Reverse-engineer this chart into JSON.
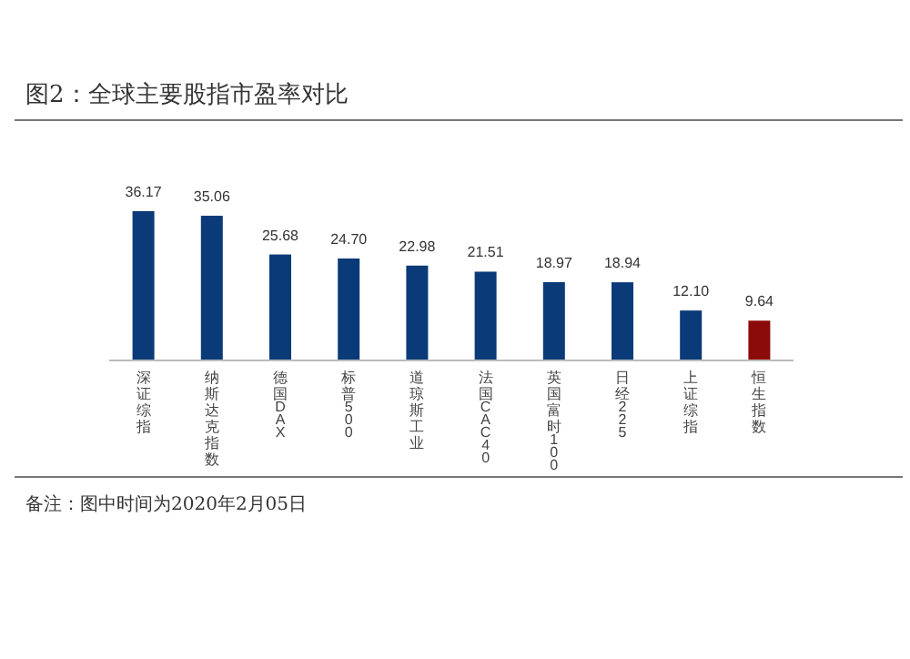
{
  "chart_data": {
    "type": "bar",
    "title": "图2：全球主要股指市盈率对比",
    "categories": [
      "深证综指",
      "纳斯达克指数",
      "德国DAX",
      "标普500",
      "道琼斯工业",
      "法国CAC40",
      "英国富时100",
      "日经225",
      "上证综指",
      "恒生指数"
    ],
    "values": [
      36.17,
      35.06,
      25.68,
      24.7,
      22.98,
      21.51,
      18.97,
      18.94,
      12.1,
      9.64
    ],
    "value_labels": [
      "36.17",
      "35.06",
      "25.68",
      "24.70",
      "22.98",
      "21.51",
      "18.97",
      "18.94",
      "12.10",
      "9.64"
    ],
    "colors": [
      "#0b3a78",
      "#0b3a78",
      "#0b3a78",
      "#0b3a78",
      "#0b3a78",
      "#0b3a78",
      "#0b3a78",
      "#0b3a78",
      "#0b3a78",
      "#8b0a0a"
    ],
    "annotations": [
      "备注：图中时间为2020年2月05日"
    ]
  }
}
